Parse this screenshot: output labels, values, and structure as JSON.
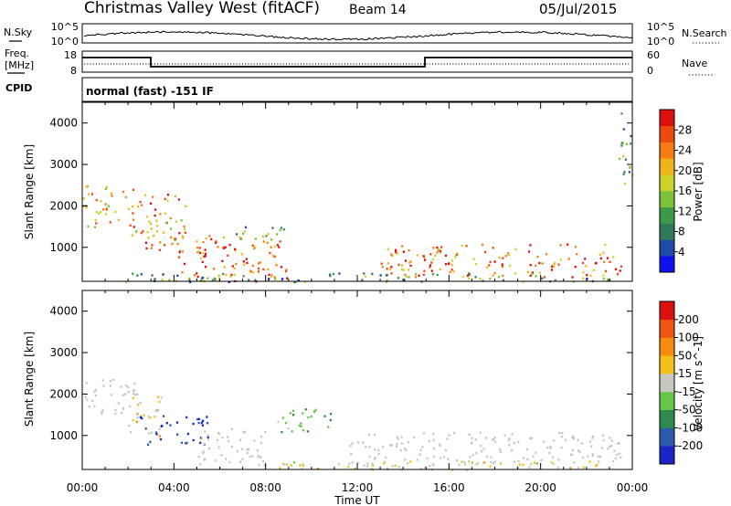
{
  "header": {
    "station": "Christmas Valley West (fitACF)",
    "beam": "Beam 14",
    "date": "05/Jul/2015"
  },
  "noise_panel": {
    "left_label": "N.Sky",
    "right_label": "N.Search",
    "left_ticks": [
      "10^5",
      "10^0"
    ],
    "right_ticks": [
      "10^5",
      "10^0"
    ]
  },
  "freq_panel": {
    "left_label_1": "Freq.",
    "left_label_2": "[MHz]",
    "right_label": "Nave",
    "left_ticks": [
      "18",
      "8"
    ],
    "right_ticks": [
      "60",
      "0"
    ]
  },
  "cpid": {
    "label": "CPID",
    "value": "normal (fast) -151 IF"
  },
  "chart_data": [
    {
      "type": "heatmap",
      "name": "Power",
      "ylabel": "Slant Range [km]",
      "xlabel": "Time UT",
      "y_ticks": [
        "4000",
        "3000",
        "2000",
        "1000"
      ],
      "x_ticks": [
        "00:00",
        "04:00",
        "08:00",
        "12:00",
        "16:00",
        "20:00",
        "00:00"
      ],
      "ylim": [
        180,
        4500
      ],
      "xlim_hours": [
        0,
        24
      ],
      "colorbar": {
        "label": "Power [dB]",
        "ticks": [
          "28",
          "24",
          "20",
          "16",
          "12",
          "8",
          "4"
        ],
        "range": [
          0,
          30
        ],
        "colors": [
          "#1010ee",
          "#1f4aa8",
          "#2f7a5a",
          "#3a9a4a",
          "#7ec23a",
          "#cdd22a",
          "#f0b41a",
          "#f57d12",
          "#ee4a10",
          "#dd1010"
        ]
      },
      "features": [
        {
          "t": [
            0.0,
            2.2
          ],
          "range": [
            1500,
            2500
          ],
          "power": 20
        },
        {
          "t": [
            2.0,
            4.5
          ],
          "range": [
            900,
            2300
          ],
          "power": 22
        },
        {
          "t": [
            4.0,
            9.0
          ],
          "range": [
            200,
            1300
          ],
          "power": 24
        },
        {
          "t": [
            6.5,
            9.0
          ],
          "range": [
            1200,
            1550
          ],
          "power": 12
        },
        {
          "t": [
            13.0,
            23.5
          ],
          "range": [
            300,
            1100
          ],
          "power": 24
        },
        {
          "t": [
            0.5,
            23.0
          ],
          "range": [
            180,
            400
          ],
          "power": 10
        },
        {
          "t": [
            23.4,
            24.0
          ],
          "range": [
            2500,
            4300
          ],
          "power": 12
        }
      ]
    },
    {
      "type": "heatmap",
      "name": "Velocity",
      "ylabel": "Slant Range [km]",
      "xlabel": "Time UT",
      "y_ticks": [
        "4000",
        "3000",
        "2000",
        "1000"
      ],
      "x_ticks": [
        "00:00",
        "04:00",
        "08:00",
        "12:00",
        "16:00",
        "20:00",
        "00:00"
      ],
      "ylim": [
        180,
        4500
      ],
      "xlim_hours": [
        0,
        24
      ],
      "colorbar": {
        "label": "Velocity [m s^-1]",
        "ticks": [
          "200",
          "100",
          "50",
          "15",
          "-15",
          "-50",
          "-100",
          "-200"
        ],
        "range": [
          -250,
          250
        ],
        "colors": [
          "#1a24c8",
          "#2a5aaa",
          "#2e8a4e",
          "#66c64a",
          "#c8c8c0",
          "#f5bf1a",
          "#f58c0f",
          "#ee5510",
          "#dd1010"
        ]
      },
      "features": [
        {
          "t": [
            0.0,
            2.5
          ],
          "range": [
            1500,
            2400
          ],
          "velocity": 0
        },
        {
          "t": [
            2.0,
            3.5
          ],
          "range": [
            1000,
            2000
          ],
          "velocity": 30
        },
        {
          "t": [
            2.5,
            5.5
          ],
          "range": [
            800,
            1500
          ],
          "velocity": -200
        },
        {
          "t": [
            5.0,
            8.0
          ],
          "range": [
            250,
            1200
          ],
          "velocity": 0
        },
        {
          "t": [
            8.5,
            11.0
          ],
          "range": [
            1100,
            1700
          ],
          "velocity": -60
        },
        {
          "t": [
            11.5,
            23.5
          ],
          "range": [
            300,
            1100
          ],
          "velocity": 0
        },
        {
          "t": [
            8.0,
            23.0
          ],
          "range": [
            180,
            400
          ],
          "velocity": 30
        }
      ]
    }
  ],
  "colors": {
    "trace": "#000000",
    "frame": "#000000",
    "background": "#ffffff"
  }
}
